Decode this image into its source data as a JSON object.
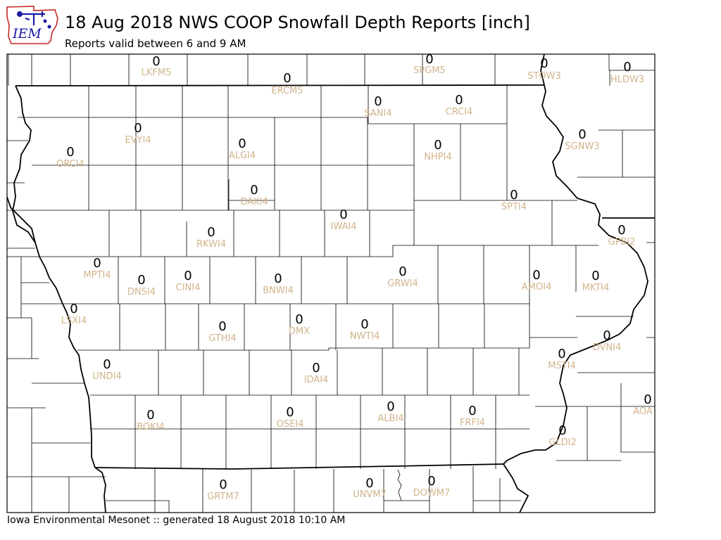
{
  "header": {
    "title": "18 Aug 2018 NWS COOP Snowfall Depth Reports [inch]",
    "subtitle": "Reports valid between 6 and 9 AM",
    "logo_text": "IEM"
  },
  "footer": {
    "text": "Iowa Environmental Mesonet :: generated 18 August 2018 10:10 AM"
  },
  "colors": {
    "value": "#000000",
    "station_id": "#d2b48c",
    "county_line": "#000000",
    "logo_blue": "#1a1aa6",
    "logo_red": "#c62828"
  },
  "stations": [
    {
      "id": "LKFM5",
      "value": "0"
    },
    {
      "id": "SPGM5",
      "value": "0"
    },
    {
      "id": "STOW3",
      "value": "0"
    },
    {
      "id": "HLDW3",
      "value": "0"
    },
    {
      "id": "ERCM5",
      "value": "0"
    },
    {
      "id": "SANI4",
      "value": "0"
    },
    {
      "id": "CRCI4",
      "value": "0"
    },
    {
      "id": "EVYI4",
      "value": "0"
    },
    {
      "id": "ALGI4",
      "value": "0"
    },
    {
      "id": "NHPI4",
      "value": "0"
    },
    {
      "id": "SGNW3",
      "value": "0"
    },
    {
      "id": "ORCI4",
      "value": "0"
    },
    {
      "id": "DAKI4",
      "value": "0"
    },
    {
      "id": "SPTI4",
      "value": "0"
    },
    {
      "id": "IWAI4",
      "value": "0"
    },
    {
      "id": "RKWI4",
      "value": "0"
    },
    {
      "id": "GPBI2",
      "value": "0"
    },
    {
      "id": "MPTI4",
      "value": "0"
    },
    {
      "id": "DNSI4",
      "value": "0"
    },
    {
      "id": "CINI4",
      "value": "0"
    },
    {
      "id": "BNWI4",
      "value": "0"
    },
    {
      "id": "GRWI4",
      "value": "0"
    },
    {
      "id": "AMOI4",
      "value": "0"
    },
    {
      "id": "MKTI4",
      "value": "0"
    },
    {
      "id": "LSXI4",
      "value": "0"
    },
    {
      "id": "DMX",
      "value": "0"
    },
    {
      "id": "GTHI4",
      "value": "0"
    },
    {
      "id": "NWTI4",
      "value": "0"
    },
    {
      "id": "DVNI4",
      "value": "0"
    },
    {
      "id": "MSTI4",
      "value": "0"
    },
    {
      "id": "UNDI4",
      "value": "0"
    },
    {
      "id": "IDAI4",
      "value": "0"
    },
    {
      "id": "AOA",
      "value": "0"
    },
    {
      "id": "BOKI4",
      "value": "0"
    },
    {
      "id": "OSEI4",
      "value": "0"
    },
    {
      "id": "ALBI4",
      "value": "0"
    },
    {
      "id": "FRFI4",
      "value": "0"
    },
    {
      "id": "GLDI2",
      "value": "0"
    },
    {
      "id": "GRTM7",
      "value": "0"
    },
    {
      "id": "UNVM7",
      "value": "0"
    },
    {
      "id": "DOWM7",
      "value": "0"
    }
  ]
}
